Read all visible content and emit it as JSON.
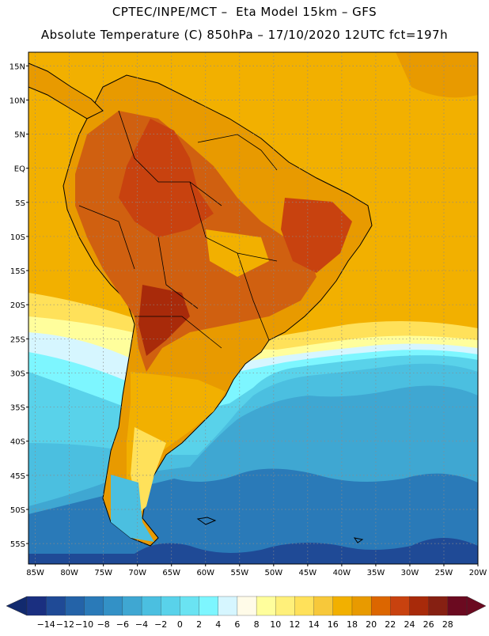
{
  "header": {
    "line1": "CPTEC/INPE/MCT –  Eta Model 15km – GFS",
    "line2": "Absolute Temperature (C) 850hPa – 17/10/2020 12UTC fct=197h"
  },
  "map": {
    "lat_labels": [
      "15N",
      "10N",
      "5N",
      "EQ",
      "5S",
      "10S",
      "15S",
      "20S",
      "25S",
      "30S",
      "35S",
      "40S",
      "45S",
      "50S",
      "55S"
    ],
    "lon_labels": [
      "85W",
      "80W",
      "75W",
      "70W",
      "65W",
      "60W",
      "55W",
      "50W",
      "45W",
      "40W",
      "35W",
      "30W",
      "25W",
      "20W"
    ],
    "lat_values": [
      15,
      10,
      5,
      0,
      -5,
      -10,
      -15,
      -20,
      -25,
      -30,
      -35,
      -40,
      -45,
      -50,
      -55
    ],
    "lon_values": [
      -85,
      -80,
      -75,
      -70,
      -65,
      -60,
      -55,
      -50,
      -45,
      -40,
      -35,
      -30,
      -25,
      -20
    ],
    "extent": {
      "lon_min": -86,
      "lon_max": -20,
      "lat_min": -58,
      "lat_max": 17
    },
    "gridlines": "dotted",
    "ocean_color": "#f2b000",
    "continent_color": "#e89a00"
  },
  "colorbar": {
    "labels": [
      "-14",
      "-12",
      "-10",
      "-8",
      "-6",
      "-4",
      "-2",
      "0",
      "2",
      "4",
      "6",
      "8",
      "10",
      "12",
      "14",
      "16",
      "18",
      "20",
      "22",
      "24",
      "26",
      "28"
    ],
    "colors": [
      "#1a2f80",
      "#1f4a96",
      "#2463a8",
      "#2a7ab8",
      "#3391c6",
      "#3fa7d2",
      "#4bbfe0",
      "#59d2ea",
      "#6ae3f2",
      "#7df6ff",
      "#d6f6ff",
      "#fffbe8",
      "#fffe9c",
      "#fff07a",
      "#ffe15a",
      "#f7c83a",
      "#f2b000",
      "#e89a00",
      "#dc6600",
      "#c8420f",
      "#a82a0a",
      "#862012",
      "#6b0a20"
    ],
    "left_arrow_color": "#122a6e",
    "right_arrow_color": "#6b0a20"
  }
}
